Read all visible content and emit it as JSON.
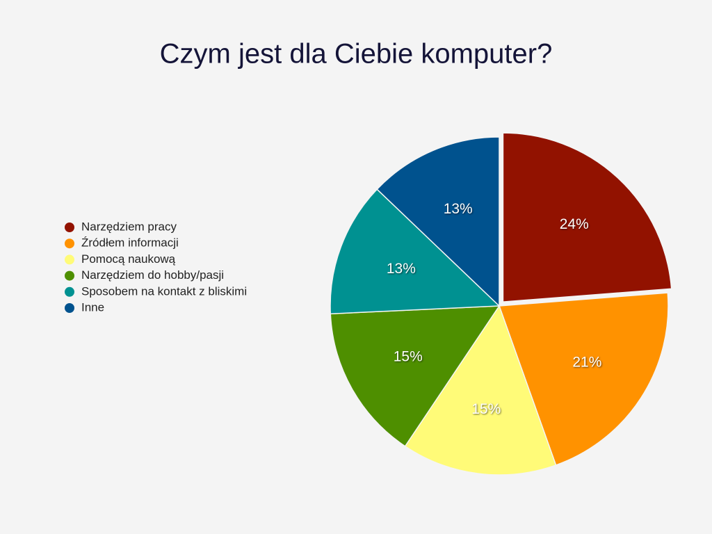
{
  "chart_data": {
    "type": "pie",
    "title": "Czym jest dla Ciebie komputer?",
    "categories": [
      "Narzędziem pracy",
      "Źródłem informacji",
      "Pomocą naukową",
      "Narzędziem do hobby/pasji",
      "Sposobem na kontakt z bliskimi",
      "Inne"
    ],
    "values": [
      24,
      21,
      15,
      15,
      13,
      13
    ],
    "value_labels": [
      "24%",
      "21%",
      "15%",
      "15%",
      "13%",
      "13%"
    ],
    "colors": [
      "#921200",
      "#ff9200",
      "#fffb78",
      "#4e8f00",
      "#009191",
      "#00528e"
    ],
    "legend": "left"
  }
}
